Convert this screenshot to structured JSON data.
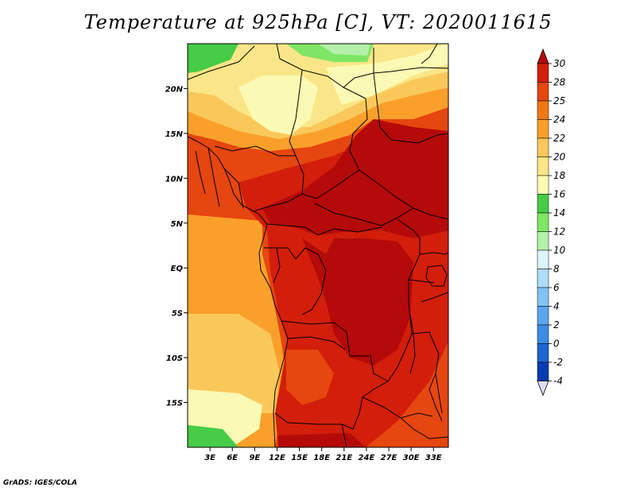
{
  "title": "Temperature at 925hPa [C], VT: 2020011615",
  "credit": "GrADS: IGES/COLA",
  "chart_data": {
    "type": "heatmap",
    "variable": "Temperature at 925hPa",
    "units": "C",
    "valid_time": "2020011615",
    "lon_range": [
      0,
      35
    ],
    "lat_range": [
      -20,
      25
    ],
    "x_ticks": [
      "3E",
      "6E",
      "9E",
      "12E",
      "15E",
      "18E",
      "21E",
      "24E",
      "27E",
      "30E",
      "33E"
    ],
    "x_tick_values": [
      3,
      6,
      9,
      12,
      15,
      18,
      21,
      24,
      27,
      30,
      33
    ],
    "y_ticks": [
      "20N",
      "15N",
      "10N",
      "5N",
      "EQ",
      "5S",
      "10S",
      "15S"
    ],
    "y_tick_values": [
      20,
      15,
      10,
      5,
      0,
      -5,
      -10,
      -15
    ],
    "colorbar": {
      "levels": [
        -4,
        -2,
        0,
        2,
        4,
        6,
        8,
        10,
        12,
        14,
        16,
        18,
        20,
        22,
        24,
        25,
        28,
        30
      ],
      "labels": [
        "-4",
        "-2",
        "0",
        "2",
        "4",
        "6",
        "8",
        "10",
        "12",
        "14",
        "16",
        "18",
        "20",
        "22",
        "24",
        "25",
        "28",
        "30"
      ],
      "colors": [
        "#05106b",
        "#0a3ab2",
        "#1e64d2",
        "#3c8ce6",
        "#5aa5ee",
        "#82c3f5",
        "#afdcfa",
        "#dcf5fa",
        "#b4f0aa",
        "#7ee664",
        "#46cc46",
        "#fafab4",
        "#fae688",
        "#fac85a",
        "#faa02a",
        "#f07814",
        "#e6460f",
        "#d21e0a",
        "#b40a0a"
      ]
    }
  }
}
